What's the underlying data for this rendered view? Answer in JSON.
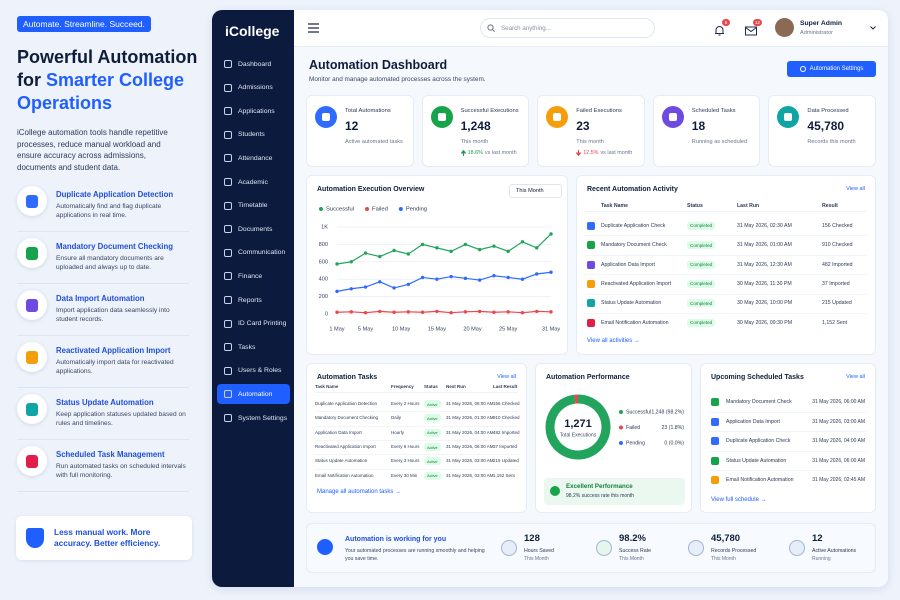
{
  "promo": {
    "tag": "Automate. Streamline. Succeed.",
    "headline": "Powerful Automation for",
    "headline_accent": "Smarter College Operations",
    "intro": "iCollege automation tools handle repetitive processes, reduce manual workload and ensure accuracy across admissions, documents and student data.",
    "features": [
      {
        "title": "Duplicate Application Detection",
        "desc": "Automatically find and flag duplicate applications in real time."
      },
      {
        "title": "Mandatory Document Checking",
        "desc": "Ensure all mandatory documents are uploaded and always up to date."
      },
      {
        "title": "Data Import Automation",
        "desc": "Import application data seamlessly into student records."
      },
      {
        "title": "Reactivated Application Import",
        "desc": "Automatically import data for reactivated applications."
      },
      {
        "title": "Status Update Automation",
        "desc": "Keep application statuses updated based on rules and timelines."
      },
      {
        "title": "Scheduled Task Management",
        "desc": "Run automated tasks on scheduled intervals with full monitoring."
      }
    ],
    "callout": "Less manual work. More accuracy. Better efficiency."
  },
  "sidebar": {
    "brand": "iCollege",
    "nav": [
      {
        "label": "Dashboard"
      },
      {
        "label": "Admissions"
      },
      {
        "label": "Applications"
      },
      {
        "label": "Students"
      },
      {
        "label": "Attendance"
      },
      {
        "label": "Academic"
      },
      {
        "label": "Timetable"
      },
      {
        "label": "Documents"
      },
      {
        "label": "Communication"
      },
      {
        "label": "Finance"
      },
      {
        "label": "Reports"
      },
      {
        "label": "ID Card Printing"
      },
      {
        "label": "Tasks"
      },
      {
        "label": "Users & Roles"
      },
      {
        "label": "Automation",
        "active": true
      },
      {
        "label": "System Settings"
      }
    ]
  },
  "topbar": {
    "search_placeholder": "Search anything...",
    "notification_count": "5",
    "message_count": "12",
    "user_name": "Super Admin",
    "user_role": "Administrator"
  },
  "header": {
    "title": "Automation Dashboard",
    "subtitle": "Monitor and manage automated processes across the system.",
    "button": "Automation Settings"
  },
  "kpis": [
    {
      "label": "Total Automations",
      "value": "12",
      "note": "Active automated tasks"
    },
    {
      "label": "Successful Executions",
      "value": "1,248",
      "note": "This month",
      "trend": {
        "direction": "up",
        "change": "18.6%",
        "text": "vs last month"
      }
    },
    {
      "label": "Failed Executions",
      "value": "23",
      "note": "This month",
      "trend": {
        "direction": "down",
        "change": "12.5%",
        "text": "vs last month"
      }
    },
    {
      "label": "Scheduled Tasks",
      "value": "18",
      "note": "Running as scheduled"
    },
    {
      "label": "Data Processed",
      "value": "45,780",
      "note": "Records this month"
    }
  ],
  "chart_data": [
    {
      "type": "line",
      "title": "Automation Execution Overview",
      "period": "This Month",
      "x": [
        1,
        3,
        5,
        7,
        9,
        11,
        13,
        15,
        17,
        19,
        21,
        23,
        25,
        27,
        29,
        31
      ],
      "xlim": [
        1,
        31
      ],
      "xticks": [
        {
          "value": 1,
          "label": "1 May"
        },
        {
          "value": 5,
          "label": "5 May"
        },
        {
          "value": 10,
          "label": "10 May"
        },
        {
          "value": 15,
          "label": "15 May"
        },
        {
          "value": 20,
          "label": "20 May"
        },
        {
          "value": 25,
          "label": "25 May"
        },
        {
          "value": 31,
          "label": "31 May"
        }
      ],
      "ylim": [
        0,
        1000
      ],
      "yticks": [
        0,
        200,
        400,
        600,
        800,
        {
          "value": 1000,
          "label": "1K"
        }
      ],
      "grid": true,
      "legend": "top-left",
      "series": [
        {
          "name": "Successful",
          "color": "#22a45d",
          "values": [
            575,
            600,
            700,
            660,
            730,
            690,
            800,
            760,
            720,
            800,
            740,
            780,
            720,
            830,
            760,
            920
          ]
        },
        {
          "name": "Failed",
          "color": "#e5484d",
          "values": [
            20,
            25,
            15,
            30,
            20,
            25,
            20,
            30,
            15,
            25,
            30,
            20,
            25,
            15,
            30,
            25
          ]
        },
        {
          "name": "Pending",
          "color": "#2f6bff",
          "values": [
            260,
            290,
            310,
            370,
            300,
            340,
            420,
            400,
            430,
            410,
            390,
            440,
            420,
            400,
            460,
            480
          ]
        }
      ]
    },
    {
      "type": "pie",
      "title": "Automation Performance",
      "categories": [
        "Successful",
        "Failed",
        "Pending"
      ],
      "values": [
        1248,
        23,
        0
      ],
      "value_labels": [
        "1,248",
        "23",
        "0"
      ],
      "percent_labels": [
        "(98.2%)",
        "(1.8%)",
        "(0.0%)"
      ],
      "colors": [
        "#22a45d",
        "#e5484d",
        "#2f6bff"
      ],
      "center_value": "1,271",
      "center_label": "Total Executions",
      "status_title": "Excellent Performance",
      "status_text": "98.2% success rate this month"
    }
  ],
  "activity": {
    "title": "Recent Automation Activity",
    "view_all": "View all",
    "columns": [
      "Task Name",
      "Status",
      "Last Run",
      "Result"
    ],
    "rows": [
      [
        "Duplicate Application Check",
        "Completed",
        "31 May 2026, 02:30 AM",
        "156 Checked"
      ],
      [
        "Mandatory Document Check",
        "Completed",
        "31 May 2026, 01:00 AM",
        "910 Checked"
      ],
      [
        "Application Data Import",
        "Completed",
        "31 May 2026, 12:30 AM",
        "482 Imported"
      ],
      [
        "Reactivated Application Import",
        "Completed",
        "30 May 2026, 11:30 PM",
        "37 Imported"
      ],
      [
        "Status Update Automation",
        "Completed",
        "30 May 2026, 10:00 PM",
        "215 Updated"
      ],
      [
        "Email Notification Automation",
        "Completed",
        "30 May 2026, 09:30 PM",
        "1,152 Sent"
      ]
    ],
    "footer_link": "View all activities →"
  },
  "tasks": {
    "title": "Automation Tasks",
    "view_all": "View all",
    "columns": [
      "Task Name",
      "Frequency",
      "Status",
      "Next Run",
      "Last Result"
    ],
    "rows": [
      [
        "Duplicate Application Detection",
        "Every 2 Hours",
        "Active",
        "31 May 2026, 06:00 AM",
        "156 Checked"
      ],
      [
        "Mandatory Document Checking",
        "Daily",
        "Active",
        "31 May 2026, 01:00 AM",
        "910 Checked"
      ],
      [
        "Application Data Import",
        "Hourly",
        "Active",
        "31 May 2026, 04:00 AM",
        "482 Imported"
      ],
      [
        "Reactivated Application Import",
        "Every 6 Hours",
        "Active",
        "31 May 2026, 06:00 AM",
        "37 Imported"
      ],
      [
        "Status Update Automation",
        "Every 3 Hours",
        "Active",
        "31 May 2026, 03:00 AM",
        "215 Updated"
      ],
      [
        "Email Notification Automation",
        "Every 30 Min",
        "Active",
        "31 May 2026, 03:00 AM",
        "1,152 Sent"
      ]
    ],
    "footer_link": "Manage all automation tasks →"
  },
  "upcoming": {
    "title": "Upcoming Scheduled Tasks",
    "view_all": "View all",
    "rows": [
      {
        "task": "Mandatory Document Check",
        "date": "31 May 2026, 06:00 AM"
      },
      {
        "task": "Application Data Import",
        "date": "31 May 2026, 03:00 AM"
      },
      {
        "task": "Duplicate Application Check",
        "date": "31 May 2026, 04:00 AM"
      },
      {
        "task": "Status Update Automation",
        "date": "31 May 2026, 06:00 AM"
      },
      {
        "task": "Email Notification Automation",
        "date": "31 May 2026, 02:45 AM"
      }
    ],
    "footer_link": "View full schedule →"
  },
  "banner": {
    "title": "Automation is working for you",
    "text": "Your automated processes are running smoothly and helping you save time.",
    "stats": [
      {
        "value": "128",
        "label": "Hours Saved",
        "note": "This Month"
      },
      {
        "value": "98.2%",
        "label": "Success Rate",
        "note": "This Month"
      },
      {
        "value": "45,780",
        "label": "Records Processed",
        "note": "This Month"
      },
      {
        "value": "12",
        "label": "Active Automations",
        "note": "Running"
      }
    ]
  }
}
